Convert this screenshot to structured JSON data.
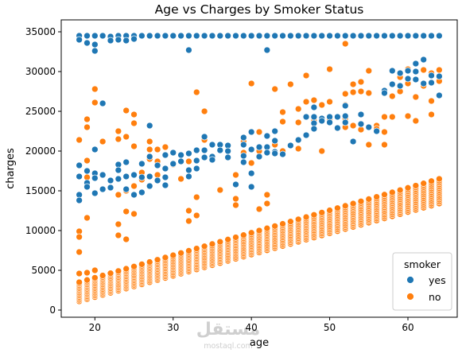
{
  "chart_data": {
    "type": "scatter",
    "title": "Age vs Charges by Smoker Status",
    "xlabel": "age",
    "ylabel": "charges",
    "xlim": [
      15.7,
      66.3
    ],
    "ylim": [
      -900,
      36500
    ],
    "xticks": [
      20,
      30,
      40,
      50,
      60
    ],
    "yticks": [
      0,
      5000,
      10000,
      15000,
      20000,
      25000,
      30000,
      35000
    ],
    "grid": false,
    "legend": {
      "title": "smoker",
      "placement": "lower-right"
    },
    "series": [
      {
        "name": "yes",
        "color": "#1f77b4",
        "points": [
          [
            18,
            34500
          ],
          [
            18,
            34000
          ],
          [
            18,
            18200
          ],
          [
            18,
            16800
          ],
          [
            18,
            14500
          ],
          [
            18,
            13800
          ],
          [
            19,
            34500
          ],
          [
            19,
            33600
          ],
          [
            19,
            17500
          ],
          [
            19,
            16000
          ],
          [
            19,
            15500
          ],
          [
            20,
            34500
          ],
          [
            20,
            32600
          ],
          [
            20,
            33400
          ],
          [
            20,
            20200
          ],
          [
            20,
            17200
          ],
          [
            20,
            16600
          ],
          [
            20,
            14700
          ],
          [
            21,
            34500
          ],
          [
            21,
            26000
          ],
          [
            21,
            17000
          ],
          [
            21,
            15200
          ],
          [
            22,
            34400
          ],
          [
            22,
            33900
          ],
          [
            22,
            16300
          ],
          [
            22,
            15400
          ],
          [
            23,
            34500
          ],
          [
            23,
            34000
          ],
          [
            23,
            18300
          ],
          [
            23,
            17600
          ],
          [
            23,
            16500
          ],
          [
            24,
            34500
          ],
          [
            24,
            33900
          ],
          [
            24,
            18600
          ],
          [
            24,
            16800
          ],
          [
            24,
            15200
          ],
          [
            25,
            34500
          ],
          [
            25,
            34100
          ],
          [
            25,
            17000
          ],
          [
            25,
            14500
          ],
          [
            26,
            34500
          ],
          [
            26,
            18400
          ],
          [
            26,
            16700
          ],
          [
            26,
            14800
          ],
          [
            27,
            34500
          ],
          [
            27,
            23200
          ],
          [
            27,
            19300
          ],
          [
            27,
            16800
          ],
          [
            27,
            15600
          ],
          [
            28,
            34500
          ],
          [
            28,
            18200
          ],
          [
            28,
            16300
          ],
          [
            29,
            34500
          ],
          [
            29,
            19500
          ],
          [
            29,
            17800
          ],
          [
            29,
            16700
          ],
          [
            29,
            15700
          ],
          [
            30,
            34500
          ],
          [
            30,
            19800
          ],
          [
            30,
            18400
          ],
          [
            31,
            34500
          ],
          [
            31,
            19500
          ],
          [
            31,
            18700
          ],
          [
            32,
            34500
          ],
          [
            32,
            32700
          ],
          [
            32,
            19700
          ],
          [
            32,
            17600
          ],
          [
            32,
            16800
          ],
          [
            33,
            34500
          ],
          [
            33,
            20100
          ],
          [
            33,
            18800
          ],
          [
            33,
            17800
          ],
          [
            34,
            34500
          ],
          [
            34,
            21800
          ],
          [
            34,
            20100
          ],
          [
            34,
            19200
          ],
          [
            35,
            34500
          ],
          [
            35,
            20800
          ],
          [
            35,
            19300
          ],
          [
            35,
            18900
          ],
          [
            36,
            34500
          ],
          [
            36,
            20800
          ],
          [
            36,
            20100
          ],
          [
            37,
            34500
          ],
          [
            37,
            20700
          ],
          [
            37,
            20000
          ],
          [
            37,
            19200
          ],
          [
            38,
            34500
          ],
          [
            38,
            15800
          ],
          [
            39,
            34500
          ],
          [
            39,
            21700
          ],
          [
            39,
            20800
          ],
          [
            39,
            19400
          ],
          [
            39,
            18600
          ],
          [
            40,
            34500
          ],
          [
            40,
            22400
          ],
          [
            40,
            20200
          ],
          [
            40,
            17200
          ],
          [
            40,
            15500
          ],
          [
            41,
            34500
          ],
          [
            41,
            20500
          ],
          [
            41,
            19300
          ],
          [
            42,
            34500
          ],
          [
            42,
            32700
          ],
          [
            42,
            21900
          ],
          [
            42,
            20500
          ],
          [
            42,
            19800
          ],
          [
            43,
            34500
          ],
          [
            43,
            22500
          ],
          [
            43,
            21300
          ],
          [
            43,
            19900
          ],
          [
            43,
            19700
          ],
          [
            44,
            34500
          ],
          [
            44,
            19600
          ],
          [
            45,
            34500
          ],
          [
            45,
            20700
          ],
          [
            46,
            34500
          ],
          [
            46,
            21400
          ],
          [
            47,
            34500
          ],
          [
            47,
            24300
          ],
          [
            47,
            22000
          ],
          [
            48,
            34500
          ],
          [
            48,
            25500
          ],
          [
            48,
            24300
          ],
          [
            48,
            23500
          ],
          [
            48,
            22800
          ],
          [
            49,
            34500
          ],
          [
            49,
            24100
          ],
          [
            49,
            23800
          ],
          [
            50,
            34500
          ],
          [
            50,
            24300
          ],
          [
            50,
            23600
          ],
          [
            51,
            34500
          ],
          [
            51,
            24300
          ],
          [
            51,
            22900
          ],
          [
            52,
            34500
          ],
          [
            52,
            25700
          ],
          [
            52,
            24400
          ],
          [
            52,
            23600
          ],
          [
            53,
            34500
          ],
          [
            53,
            21200
          ],
          [
            54,
            34500
          ],
          [
            54,
            24600
          ],
          [
            54,
            23400
          ],
          [
            55,
            34500
          ],
          [
            55,
            23000
          ],
          [
            56,
            34500
          ],
          [
            56,
            22500
          ],
          [
            57,
            34500
          ],
          [
            57,
            27600
          ],
          [
            57,
            27300
          ],
          [
            58,
            34500
          ],
          [
            58,
            30100
          ],
          [
            58,
            28400
          ],
          [
            59,
            34500
          ],
          [
            59,
            29800
          ],
          [
            59,
            28200
          ],
          [
            60,
            34500
          ],
          [
            60,
            30100
          ],
          [
            60,
            29100
          ],
          [
            61,
            34500
          ],
          [
            61,
            31000
          ],
          [
            61,
            30000
          ],
          [
            61,
            29000
          ],
          [
            62,
            34500
          ],
          [
            62,
            31500
          ],
          [
            62,
            28500
          ],
          [
            63,
            34500
          ],
          [
            63,
            29500
          ],
          [
            63,
            28600
          ],
          [
            64,
            34500
          ],
          [
            64,
            29400
          ],
          [
            64,
            27000
          ]
        ]
      },
      {
        "name": "no",
        "color": "#ff7f0e",
        "points": [
          [
            18,
            21400
          ],
          [
            18,
            9900
          ],
          [
            18,
            9200
          ],
          [
            18,
            7300
          ],
          [
            18,
            4600
          ],
          [
            19,
            24000
          ],
          [
            19,
            23000
          ],
          [
            19,
            18800
          ],
          [
            19,
            16700
          ],
          [
            19,
            11600
          ],
          [
            19,
            4700
          ],
          [
            20,
            27800
          ],
          [
            20,
            26100
          ],
          [
            20,
            5000
          ],
          [
            21,
            26000
          ],
          [
            21,
            21200
          ],
          [
            23,
            22500
          ],
          [
            23,
            21500
          ],
          [
            23,
            14500
          ],
          [
            23,
            10800
          ],
          [
            23,
            9400
          ],
          [
            24,
            25100
          ],
          [
            24,
            21800
          ],
          [
            24,
            15000
          ],
          [
            24,
            12400
          ],
          [
            24,
            8900
          ],
          [
            25,
            24600
          ],
          [
            25,
            23500
          ],
          [
            25,
            20600
          ],
          [
            25,
            15600
          ],
          [
            25,
            12100
          ],
          [
            26,
            17300
          ],
          [
            26,
            16400
          ],
          [
            27,
            21200
          ],
          [
            27,
            20200
          ],
          [
            27,
            19000
          ],
          [
            28,
            20200
          ],
          [
            28,
            18700
          ],
          [
            28,
            17000
          ],
          [
            29,
            20500
          ],
          [
            29,
            16700
          ],
          [
            30,
            19800
          ],
          [
            30,
            18300
          ],
          [
            31,
            16500
          ],
          [
            32,
            12500
          ],
          [
            32,
            11200
          ],
          [
            32,
            18700
          ],
          [
            33,
            27400
          ],
          [
            33,
            14200
          ],
          [
            33,
            11900
          ],
          [
            34,
            25000
          ],
          [
            34,
            21400
          ],
          [
            36,
            15100
          ],
          [
            38,
            17000
          ],
          [
            38,
            14000
          ],
          [
            38,
            13200
          ],
          [
            39,
            21200
          ],
          [
            39,
            19800
          ],
          [
            40,
            28500
          ],
          [
            40,
            18500
          ],
          [
            41,
            22400
          ],
          [
            41,
            20000
          ],
          [
            41,
            12700
          ],
          [
            42,
            14500
          ],
          [
            42,
            13400
          ],
          [
            43,
            27800
          ],
          [
            43,
            20800
          ],
          [
            44,
            24900
          ],
          [
            44,
            23700
          ],
          [
            44,
            20000
          ],
          [
            45,
            28400
          ],
          [
            46,
            25300
          ],
          [
            46,
            23600
          ],
          [
            46,
            20300
          ],
          [
            47,
            29500
          ],
          [
            47,
            26200
          ],
          [
            48,
            26400
          ],
          [
            48,
            23800
          ],
          [
            49,
            25800
          ],
          [
            49,
            20000
          ],
          [
            50,
            30300
          ],
          [
            50,
            26200
          ],
          [
            50,
            24000
          ],
          [
            52,
            33500
          ],
          [
            52,
            27200
          ],
          [
            52,
            25800
          ],
          [
            52,
            24100
          ],
          [
            52,
            23000
          ],
          [
            53,
            28400
          ],
          [
            53,
            27400
          ],
          [
            53,
            23200
          ],
          [
            54,
            28700
          ],
          [
            54,
            27500
          ],
          [
            54,
            22700
          ],
          [
            55,
            30100
          ],
          [
            55,
            27300
          ],
          [
            55,
            20800
          ],
          [
            56,
            23200
          ],
          [
            56,
            22800
          ],
          [
            57,
            24300
          ],
          [
            57,
            22400
          ],
          [
            57,
            20800
          ],
          [
            58,
            34500
          ],
          [
            58,
            26900
          ],
          [
            58,
            24300
          ],
          [
            59,
            29300
          ],
          [
            59,
            27500
          ],
          [
            60,
            30300
          ],
          [
            60,
            28500
          ],
          [
            60,
            24400
          ],
          [
            61,
            26800
          ],
          [
            61,
            23800
          ],
          [
            62,
            30200
          ],
          [
            62,
            28200
          ],
          [
            63,
            29800
          ],
          [
            63,
            26300
          ],
          [
            63,
            24600
          ],
          [
            64,
            30200
          ],
          [
            64,
            28800
          ]
        ],
        "bands": [
          {
            "age_range": [
              18,
              64
            ],
            "charges_low_start": 1100,
            "charges_low_end": 13400,
            "charges_high_start": 3500,
            "charges_high_end": 16500,
            "per_age": 14
          }
        ]
      }
    ]
  },
  "watermark": {
    "text": "مستقل",
    "subtext": "mostaql.com"
  },
  "legend": {
    "title": "smoker",
    "items": [
      "yes",
      "no"
    ]
  }
}
